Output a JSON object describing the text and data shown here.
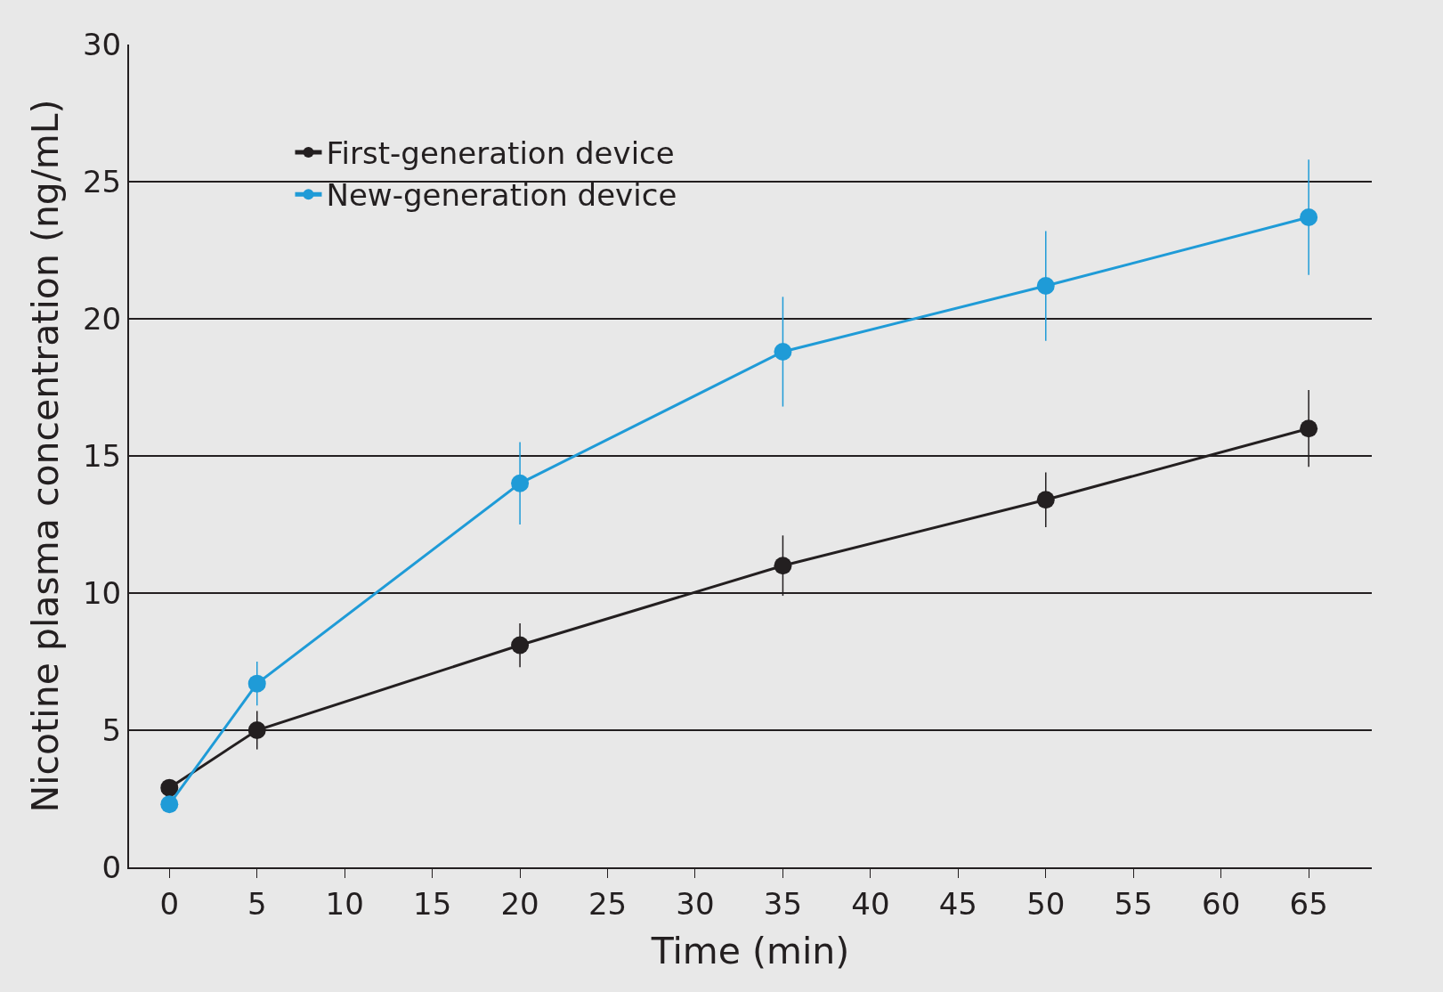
{
  "chart_data": {
    "type": "line",
    "xlabel": "Time (min)",
    "ylabel": "Nicotine plasma concentration (ng/mL)",
    "x": [
      0,
      5,
      20,
      35,
      50,
      65
    ],
    "series": [
      {
        "name": "First-generation device",
        "color": "#231f20",
        "values": [
          2.9,
          5.0,
          8.1,
          11.0,
          13.4,
          16.0
        ],
        "errors": [
          null,
          0.7,
          0.8,
          1.1,
          1.0,
          1.4
        ]
      },
      {
        "name": "New-generation device",
        "color": "#1f9bd7",
        "values": [
          2.3,
          6.7,
          14.0,
          18.8,
          21.2,
          23.7
        ],
        "errors": [
          null,
          0.8,
          1.5,
          2.0,
          2.0,
          2.1
        ]
      }
    ],
    "xlim": [
      -2.3,
      68.6
    ],
    "ylim": [
      0,
      30
    ],
    "xticks": [
      0,
      5,
      10,
      15,
      20,
      25,
      30,
      35,
      40,
      45,
      50,
      55,
      60,
      65
    ],
    "yticks": [
      0,
      5,
      10,
      15,
      20,
      25,
      30
    ],
    "grid": "y",
    "legend": "top left",
    "marker": "circle",
    "line_style": "solid"
  }
}
